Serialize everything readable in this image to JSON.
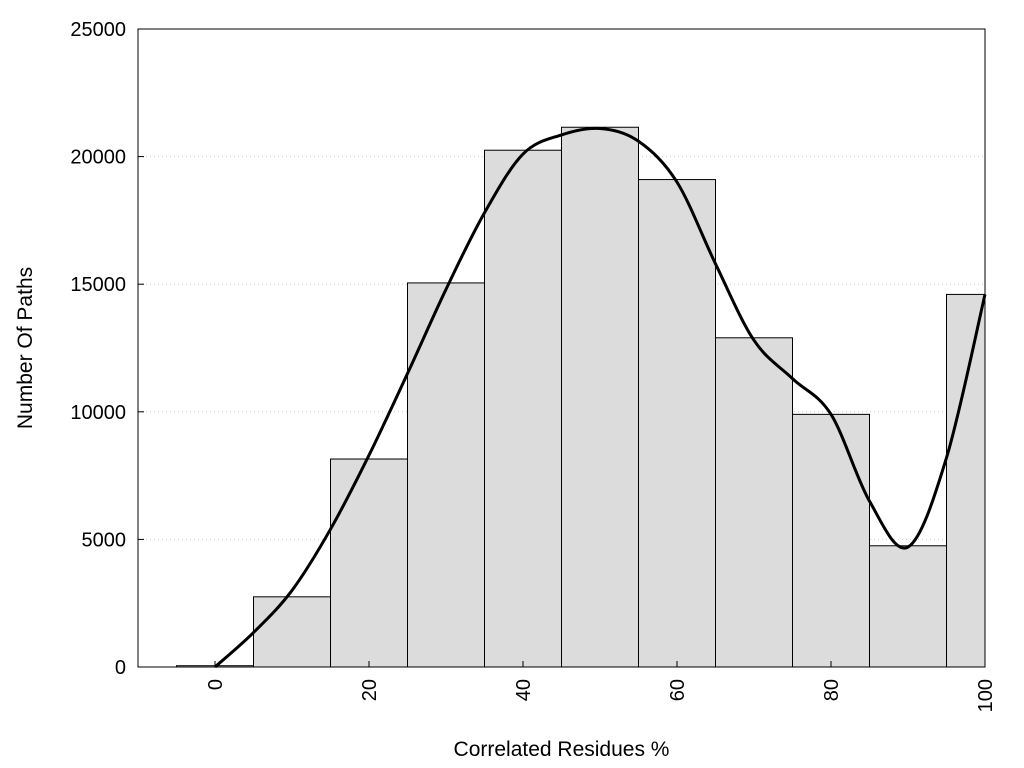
{
  "chart_data": {
    "type": "bar",
    "xlabel": "Correlated Residues %",
    "ylabel": "Number Of Paths",
    "xlim": [
      -10,
      100
    ],
    "ylim": [
      0,
      25000
    ],
    "x_ticks": [
      0,
      20,
      40,
      60,
      80,
      100
    ],
    "y_ticks": [
      0,
      5000,
      10000,
      15000,
      20000,
      25000
    ],
    "grid": "horizontal dotted",
    "bar_width": 10,
    "bars": [
      {
        "x": 0,
        "value": 50
      },
      {
        "x": 10,
        "value": 2750
      },
      {
        "x": 20,
        "value": 8150
      },
      {
        "x": 30,
        "value": 15050
      },
      {
        "x": 40,
        "value": 20250
      },
      {
        "x": 50,
        "value": 21150
      },
      {
        "x": 60,
        "value": 19100
      },
      {
        "x": 70,
        "value": 12900
      },
      {
        "x": 80,
        "value": 9900
      },
      {
        "x": 90,
        "value": 4750
      },
      {
        "x": 100,
        "value": 14600
      }
    ],
    "curve": {
      "x": [
        0,
        5,
        10,
        15,
        20,
        25,
        30,
        35,
        40,
        45,
        50,
        55,
        60,
        65,
        70,
        75,
        80,
        85,
        90,
        95,
        100
      ],
      "y": [
        0,
        1350,
        3000,
        5400,
        8300,
        11500,
        14800,
        17800,
        20100,
        20850,
        21100,
        20600,
        19000,
        15800,
        12800,
        11300,
        9900,
        6500,
        4700,
        8200,
        14600
      ]
    },
    "colors": {
      "bar_fill": "#dcdcdc",
      "bar_stroke": "#000000",
      "curve": "#000000",
      "grid": "#cccccc"
    }
  }
}
